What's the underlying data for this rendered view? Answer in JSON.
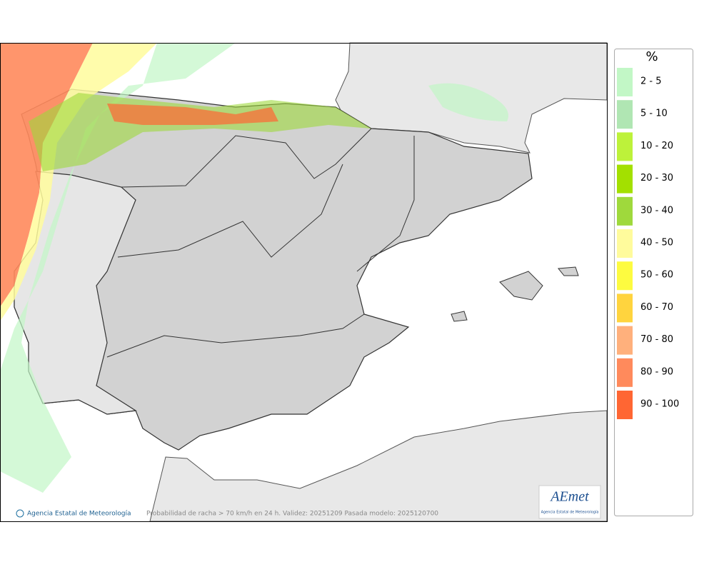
{
  "legend": {
    "title": "%",
    "items": [
      {
        "label": "2 - 5",
        "color": "#c2f7c6"
      },
      {
        "label": "5 - 10",
        "color": "#b0e6b3"
      },
      {
        "label": "10 - 20",
        "color": "#bdf23a"
      },
      {
        "label": "20 - 30",
        "color": "#a3e000"
      },
      {
        "label": "30 - 40",
        "color": "#9fd93c"
      },
      {
        "label": "40 - 50",
        "color": "#fffb9c"
      },
      {
        "label": "50 - 60",
        "color": "#fdfb40"
      },
      {
        "label": "60 - 70",
        "color": "#ffd43e"
      },
      {
        "label": "70 - 80",
        "color": "#ffb07c"
      },
      {
        "label": "80 - 90",
        "color": "#ff8a5c"
      },
      {
        "label": "90 - 100",
        "color": "#ff6633"
      }
    ]
  },
  "footer": {
    "credit": "Agencia Estatal de Meteorología",
    "caption": "Probabilidad de racha > 70 km/h en 24 h. Validez: 20251209 Pasada modelo: 2025120700"
  },
  "logo": {
    "name": "AEmet",
    "subtitle": "Agencia Estatal de Meteorología"
  }
}
